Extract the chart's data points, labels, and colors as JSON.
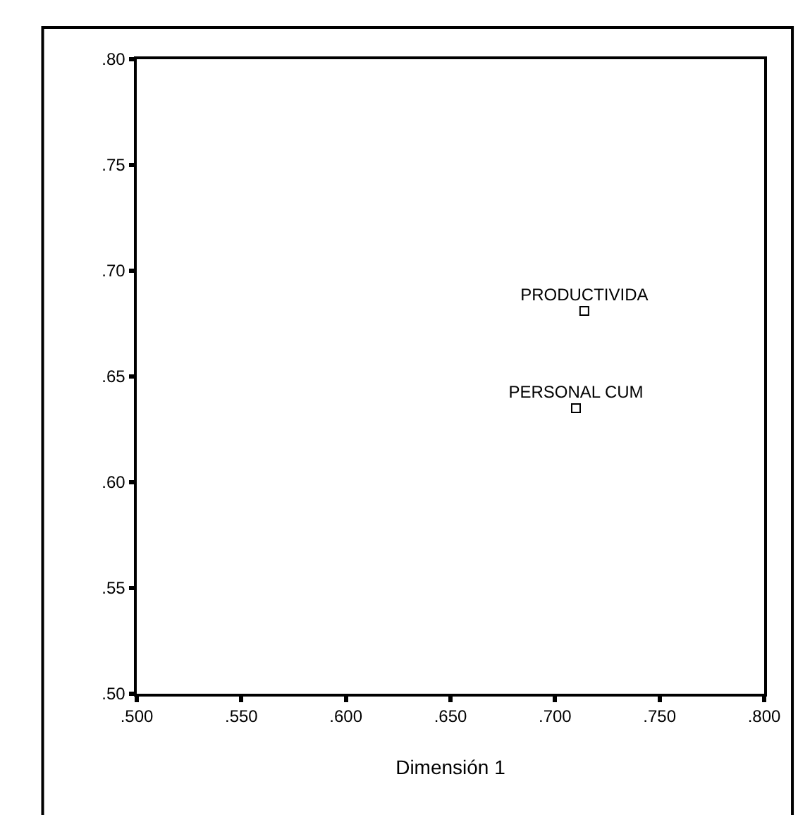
{
  "chart_data": {
    "type": "scatter",
    "xlabel": "Dimensión 1",
    "xlim": [
      0.5,
      0.8
    ],
    "ylim": [
      0.5,
      0.8
    ],
    "xticks": [
      {
        "value": 0.5,
        "label": ".500"
      },
      {
        "value": 0.55,
        "label": ".550"
      },
      {
        "value": 0.6,
        "label": ".600"
      },
      {
        "value": 0.65,
        "label": ".650"
      },
      {
        "value": 0.7,
        "label": ".700"
      },
      {
        "value": 0.75,
        "label": ".750"
      },
      {
        "value": 0.8,
        "label": ".800"
      }
    ],
    "yticks": [
      {
        "value": 0.5,
        "label": ".50"
      },
      {
        "value": 0.55,
        "label": ".55"
      },
      {
        "value": 0.6,
        "label": ".60"
      },
      {
        "value": 0.65,
        "label": ".65"
      },
      {
        "value": 0.7,
        "label": ".70"
      },
      {
        "value": 0.75,
        "label": ".75"
      },
      {
        "value": 0.8,
        "label": ".80"
      }
    ],
    "x": [
      0.714,
      0.71
    ],
    "values": [
      0.681,
      0.635
    ],
    "value_labels": [
      "PRODUCTIVIDA",
      "PERSONAL CUM"
    ],
    "color": "#000000",
    "marker": "square",
    "legend": false
  }
}
